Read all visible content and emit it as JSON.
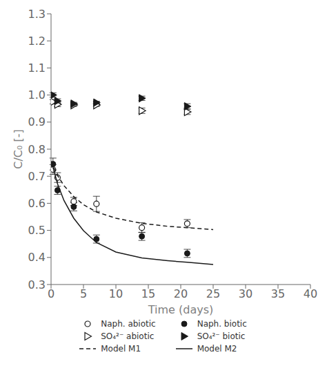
{
  "chart_data": {
    "type": "scatter",
    "title": "",
    "xlabel": "Time (days)",
    "ylabel": "C/C₀ [-]",
    "xlim": [
      0,
      40
    ],
    "ylim": [
      0.3,
      1.3
    ],
    "xticks": [
      0,
      5,
      10,
      15,
      20,
      25,
      30,
      35,
      40
    ],
    "yticks": [
      0.3,
      0.4,
      0.5,
      0.6,
      0.7,
      0.8,
      0.9,
      {
        "value": 1.0,
        "label": "1.0"
      },
      1.1,
      1.2,
      1.3
    ],
    "grid": false,
    "legend": "bottom",
    "series": [
      {
        "name": "Naph. abiotic",
        "type": "scatter",
        "marker": "circle",
        "filled": false,
        "line_style": "none",
        "color": "#1a1a1a",
        "x": [
          0.3,
          1.0,
          3.5,
          7.0,
          14.0,
          21.0
        ],
        "values": [
          0.725,
          0.695,
          0.607,
          0.598,
          0.51,
          0.525
        ],
        "yerr": [
          0.018,
          0.018,
          0.015,
          0.028,
          0.018,
          0.015
        ]
      },
      {
        "name": "Naph. biotic",
        "type": "scatter",
        "marker": "circle",
        "filled": true,
        "line_style": "none",
        "color": "#1a1a1a",
        "x": [
          0.3,
          1.0,
          3.5,
          7.0,
          14.0,
          21.0
        ],
        "values": [
          0.745,
          0.648,
          0.587,
          0.468,
          0.478,
          0.415
        ],
        "yerr": [
          0.022,
          0.015,
          0.015,
          0.015,
          0.015,
          0.015
        ]
      },
      {
        "name": "SO₄²⁻ abiotic",
        "type": "scatter",
        "marker": "triangle-right",
        "filled": false,
        "line_style": "none",
        "color": "#1a1a1a",
        "x": [
          0.3,
          1.0,
          3.5,
          7.0,
          14.0,
          21.0
        ],
        "values": [
          0.975,
          0.965,
          0.963,
          0.963,
          0.942,
          0.938
        ],
        "yerr": [
          0.008,
          0.008,
          0.005,
          0.005,
          0.01,
          0.01
        ]
      },
      {
        "name": "SO₄²⁻ biotic",
        "type": "scatter",
        "marker": "triangle-right",
        "filled": true,
        "line_style": "none",
        "color": "#1a1a1a",
        "x": [
          0.3,
          1.0,
          3.5,
          7.0,
          14.0,
          21.0
        ],
        "values": [
          1.0,
          0.978,
          0.968,
          0.972,
          0.988,
          0.958
        ],
        "yerr": [
          0.008,
          0.008,
          0.005,
          0.005,
          0.008,
          0.01
        ]
      },
      {
        "name": "Model M1",
        "type": "line",
        "marker": "none",
        "line_style": "dashed",
        "color": "#1a1a1a",
        "x": [
          0.0,
          0.3,
          1.0,
          2.0,
          3.5,
          5.0,
          7.0,
          10.0,
          14.0,
          18.0,
          21.0,
          25.0
        ],
        "values": [
          0.755,
          0.738,
          0.703,
          0.665,
          0.625,
          0.595,
          0.568,
          0.545,
          0.526,
          0.515,
          0.51,
          0.503
        ]
      },
      {
        "name": "Model M2",
        "type": "line",
        "marker": "none",
        "line_style": "solid",
        "color": "#1a1a1a",
        "x": [
          0.0,
          0.3,
          1.0,
          2.0,
          3.5,
          5.0,
          7.0,
          10.0,
          14.0,
          18.0,
          21.0,
          25.0
        ],
        "values": [
          0.755,
          0.733,
          0.672,
          0.61,
          0.545,
          0.499,
          0.455,
          0.42,
          0.398,
          0.388,
          0.382,
          0.374
        ]
      }
    ]
  }
}
